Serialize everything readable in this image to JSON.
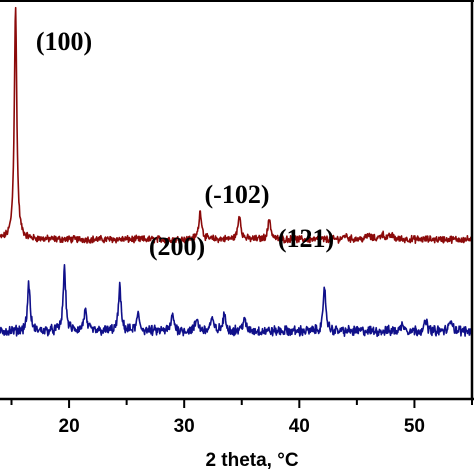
{
  "chart_data": {
    "type": "line",
    "title": "",
    "xlabel": "2 theta, °C",
    "ylabel": "",
    "xlim": [
      14.0,
      55.0
    ],
    "ylim": [
      0,
      100
    ],
    "grid": false,
    "x_ticks": [
      20,
      30,
      40,
      50
    ],
    "y_ticks": [],
    "annotations": [
      {
        "text": "(100)",
        "x": 15.3
      },
      {
        "text": "(200)",
        "x": 31.3
      },
      {
        "text": "(-102)",
        "x": 34.7
      },
      {
        "text": "(121)",
        "x": 37.3
      }
    ],
    "series": [
      {
        "color": "#8b0a0a",
        "baseline": 40,
        "noise": 0.7,
        "peaks": [
          {
            "x": 15.35,
            "h": 58,
            "w": 0.13
          },
          {
            "x": 31.4,
            "h": 7,
            "w": 0.15
          },
          {
            "x": 34.8,
            "h": 6,
            "w": 0.15
          },
          {
            "x": 37.4,
            "h": 5,
            "w": 0.15
          },
          {
            "x": 44.0,
            "h": 1,
            "w": 0.2
          },
          {
            "x": 46.0,
            "h": 1,
            "w": 0.2
          },
          {
            "x": 47.2,
            "h": 1.3,
            "w": 0.2
          },
          {
            "x": 48.0,
            "h": 1,
            "w": 0.2
          }
        ]
      },
      {
        "color": "#10108a",
        "baseline": 17,
        "noise": 1.0,
        "peaks": [
          {
            "x": 16.5,
            "h": 12,
            "w": 0.13
          },
          {
            "x": 19.6,
            "h": 16,
            "w": 0.13
          },
          {
            "x": 21.4,
            "h": 5,
            "w": 0.15
          },
          {
            "x": 24.4,
            "h": 11,
            "w": 0.13
          },
          {
            "x": 26.0,
            "h": 4,
            "w": 0.15
          },
          {
            "x": 29.0,
            "h": 4,
            "w": 0.15
          },
          {
            "x": 31.1,
            "h": 3,
            "w": 0.15
          },
          {
            "x": 32.4,
            "h": 3,
            "w": 0.15
          },
          {
            "x": 33.5,
            "h": 4,
            "w": 0.15
          },
          {
            "x": 35.2,
            "h": 3,
            "w": 0.15
          },
          {
            "x": 42.2,
            "h": 11,
            "w": 0.13
          },
          {
            "x": 49.0,
            "h": 2,
            "w": 0.15
          },
          {
            "x": 51.0,
            "h": 2.5,
            "w": 0.15
          },
          {
            "x": 53.2,
            "h": 3,
            "w": 0.15
          }
        ]
      }
    ]
  }
}
